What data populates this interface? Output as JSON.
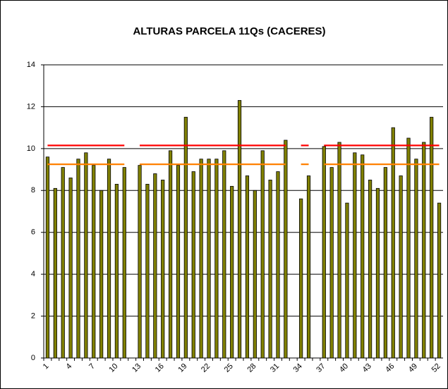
{
  "chart_data": {
    "type": "bar",
    "title": "ALTURAS PARCELA 11Qs (CACERES)",
    "categories": [
      1,
      null,
      null,
      4,
      null,
      null,
      7,
      null,
      null,
      10,
      null,
      null,
      13,
      null,
      null,
      16,
      null,
      null,
      19,
      null,
      null,
      22,
      null,
      null,
      25,
      null,
      null,
      28,
      null,
      null,
      31,
      null,
      null,
      34,
      null,
      null,
      37,
      null,
      null,
      40,
      null,
      null,
      43,
      null,
      null,
      46,
      null,
      null,
      49,
      null,
      null,
      52
    ],
    "series": [
      {
        "type": "bar",
        "color": "#808000",
        "values": [
          9.6,
          8.1,
          9.1,
          8.6,
          9.5,
          9.8,
          9.2,
          8.0,
          9.5,
          8.3,
          9.1,
          null,
          9.2,
          8.3,
          8.8,
          8.5,
          9.9,
          9.2,
          11.5,
          8.9,
          9.5,
          9.5,
          9.5,
          9.9,
          8.2,
          12.3,
          8.7,
          8.0,
          9.9,
          8.5,
          8.9,
          10.4,
          null,
          7.6,
          8.7,
          null,
          10.1,
          9.1,
          10.3,
          7.4,
          9.8,
          9.7,
          8.5,
          8.1,
          9.1,
          11.0,
          8.7,
          10.5,
          9.5,
          10.3,
          11.5,
          7.4
        ]
      },
      {
        "type": "line",
        "color": "#ff0000",
        "values": [
          10.15,
          10.15,
          10.15,
          10.15,
          10.15,
          10.15,
          10.15,
          10.15,
          10.15,
          10.15,
          10.15,
          null,
          10.15,
          10.15,
          10.15,
          10.15,
          10.15,
          10.15,
          10.15,
          10.15,
          10.15,
          10.15,
          10.15,
          10.15,
          10.15,
          10.15,
          10.15,
          10.15,
          10.15,
          10.15,
          10.15,
          10.15,
          null,
          10.15,
          10.15,
          null,
          10.15,
          10.15,
          10.15,
          10.15,
          10.15,
          10.15,
          10.15,
          10.15,
          10.15,
          10.15,
          10.15,
          10.15,
          10.15,
          10.15,
          10.15,
          10.15
        ]
      },
      {
        "type": "line",
        "color": "#ff8000",
        "values": [
          9.25,
          9.25,
          9.25,
          9.25,
          9.25,
          9.25,
          9.25,
          9.25,
          9.25,
          9.25,
          9.25,
          null,
          9.25,
          9.25,
          9.25,
          9.25,
          9.25,
          9.25,
          9.25,
          9.25,
          9.25,
          9.25,
          9.25,
          9.25,
          9.25,
          9.25,
          9.25,
          9.25,
          9.25,
          9.25,
          9.25,
          9.25,
          null,
          9.25,
          9.25,
          null,
          9.25,
          9.25,
          9.25,
          9.25,
          9.25,
          9.25,
          9.25,
          9.25,
          9.25,
          9.25,
          9.25,
          9.25,
          9.25,
          9.25,
          9.25,
          9.25
        ]
      }
    ],
    "ylim": [
      0,
      14
    ],
    "yticks": [
      0,
      2,
      4,
      6,
      8,
      10,
      12,
      14
    ],
    "grid": true
  }
}
